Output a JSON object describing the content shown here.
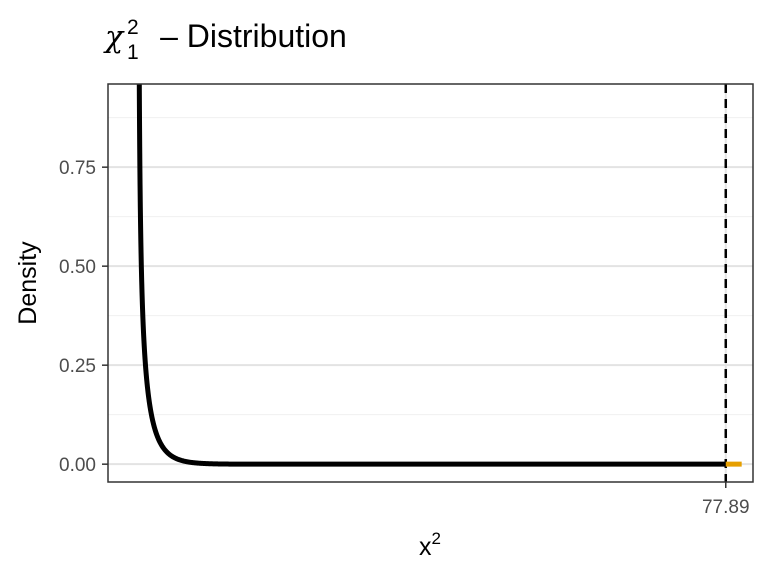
{
  "chart_data": {
    "type": "line",
    "title": {
      "symbol": "χ",
      "superscript": "2",
      "subscript": "1",
      "text": "– Distribution"
    },
    "xlabel": {
      "base": "x",
      "superscript": "2"
    },
    "ylabel": "Density",
    "x_ticks": [
      "77.89"
    ],
    "y_ticks": [
      0.0,
      0.25,
      0.5,
      0.75
    ],
    "y_tick_labels": [
      "0.00",
      "0.25",
      "0.50",
      "0.75"
    ],
    "xlim": [
      -4,
      81.5
    ],
    "ylim": [
      -0.045,
      0.96
    ],
    "series": [
      {
        "name": "density",
        "df": 1,
        "x_range": [
          0.1,
          77.89
        ],
        "color": "#000000"
      },
      {
        "name": "tail",
        "x_range": [
          77.89,
          80
        ],
        "color": "#E69F00"
      }
    ],
    "critical_value": 77.89,
    "grid": true,
    "legend": "none"
  }
}
